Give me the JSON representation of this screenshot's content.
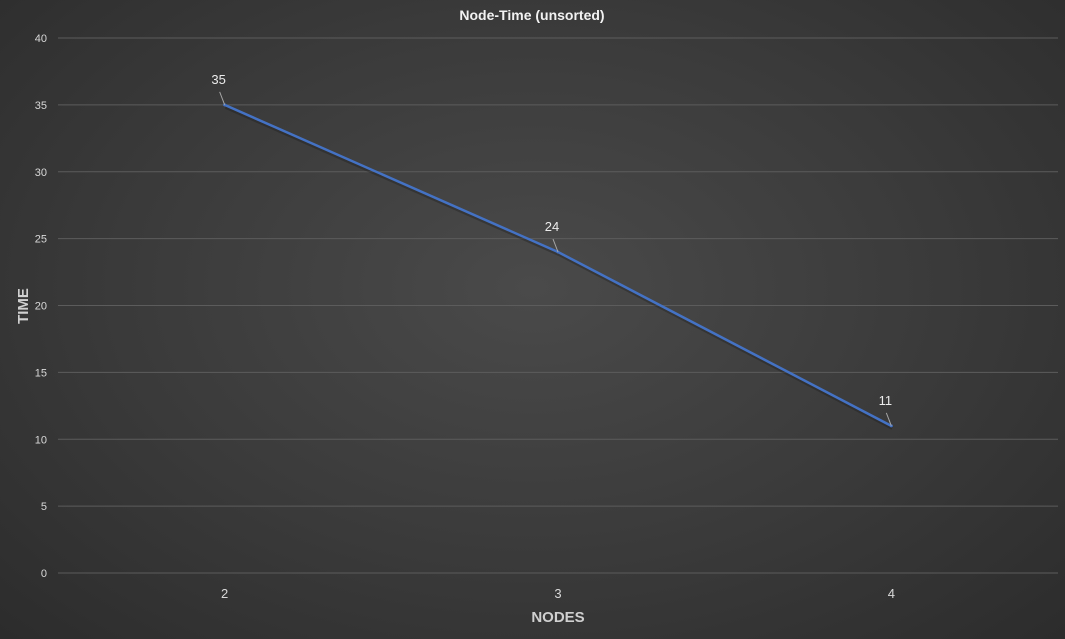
{
  "chart_data": {
    "type": "line",
    "title": "Node-Time (unsorted)",
    "xlabel": "NODES",
    "ylabel": "TIME",
    "categories": [
      "2",
      "3",
      "4"
    ],
    "series": [
      {
        "values": [
          35,
          24,
          11
        ],
        "color": "#4472c4"
      }
    ],
    "ylim": [
      0,
      40
    ],
    "yticks": [
      "0",
      "5",
      "10",
      "15",
      "20",
      "25",
      "30",
      "35",
      "40"
    ],
    "data_labels": [
      "35",
      "24",
      "11"
    ],
    "grid": true,
    "legend": "none"
  }
}
